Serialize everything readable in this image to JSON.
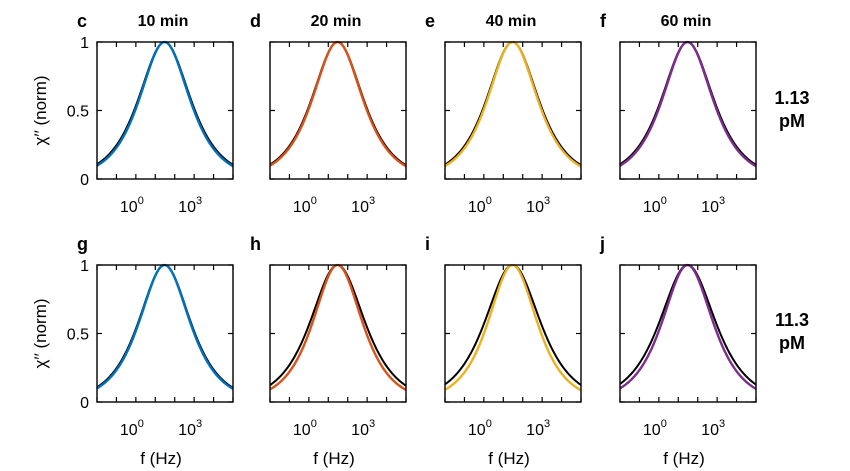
{
  "figure": {
    "column_titles": [
      "10 min",
      "20 min",
      "40 min",
      "60 min"
    ],
    "row_labels": [
      {
        "line1": "1.13",
        "line2": "pM"
      },
      {
        "line1": "11.3",
        "line2": "pM"
      }
    ],
    "ylabel": "χ′′ (norm)",
    "xlabel": "f (Hz)",
    "colors": {
      "blue": "#0072BD",
      "orange": "#D95319",
      "yellow": "#EDB120",
      "purple": "#7E2F8E",
      "reference": "#000000"
    }
  },
  "chart_data": [
    {
      "panel": "c",
      "title": "10 min",
      "row_label": "1.13 pM",
      "type": "line",
      "xscale": "log",
      "xlim": [
        0.01,
        100000
      ],
      "ylim": [
        0,
        1
      ],
      "xticks": [
        "10^0",
        "10^3"
      ],
      "yticks": [
        "0",
        "0.5",
        "1"
      ],
      "ylabel": "χ′′ (norm)",
      "xlabel": "",
      "series": [
        {
          "color": "#000000",
          "peak_hz": 30,
          "width": 1.19
        },
        {
          "color": "#0072BD",
          "peak_hz": 30,
          "width": 1.15
        }
      ]
    },
    {
      "panel": "d",
      "title": "20 min",
      "row_label": "1.13 pM",
      "type": "line",
      "xscale": "log",
      "xlim": [
        0.01,
        100000
      ],
      "ylim": [
        0,
        1
      ],
      "xticks": [
        "10^0",
        "10^3"
      ],
      "yticks": [],
      "ylabel": "",
      "xlabel": "",
      "series": [
        {
          "color": "#000000",
          "peak_hz": 30,
          "width": 1.18
        },
        {
          "color": "#D95319",
          "peak_hz": 30,
          "width": 1.15
        }
      ]
    },
    {
      "panel": "e",
      "title": "40 min",
      "row_label": "1.13 pM",
      "type": "line",
      "xscale": "log",
      "xlim": [
        0.01,
        100000
      ],
      "ylim": [
        0,
        1
      ],
      "xticks": [
        "10^0",
        "10^3"
      ],
      "yticks": [],
      "ylabel": "",
      "xlabel": "",
      "series": [
        {
          "color": "#000000",
          "peak_hz": 30,
          "width": 1.18
        },
        {
          "color": "#EDB120",
          "peak_hz": 30,
          "width": 1.14
        }
      ]
    },
    {
      "panel": "f",
      "title": "60 min",
      "row_label": "1.13 pM",
      "type": "line",
      "xscale": "log",
      "xlim": [
        0.01,
        100000
      ],
      "ylim": [
        0,
        1
      ],
      "xticks": [
        "10^0",
        "10^3"
      ],
      "yticks": [],
      "ylabel": "",
      "xlabel": "",
      "series": [
        {
          "color": "#000000",
          "peak_hz": 30,
          "width": 1.19
        },
        {
          "color": "#7E2F8E",
          "peak_hz": 30,
          "width": 1.15
        }
      ]
    },
    {
      "panel": "g",
      "title": "",
      "row_label": "11.3 pM",
      "type": "line",
      "xscale": "log",
      "xlim": [
        0.01,
        100000
      ],
      "ylim": [
        0,
        1
      ],
      "xticks": [
        "10^0",
        "10^3"
      ],
      "yticks": [
        "0",
        "0.5",
        "1"
      ],
      "ylabel": "χ′′ (norm)",
      "xlabel": "f (Hz)",
      "series": [
        {
          "color": "#000000",
          "peak_hz": 30,
          "width": 1.19
        },
        {
          "color": "#0072BD",
          "peak_hz": 30,
          "width": 1.16
        }
      ]
    },
    {
      "panel": "h",
      "title": "",
      "row_label": "11.3 pM",
      "type": "line",
      "xscale": "log",
      "xlim": [
        0.01,
        100000
      ],
      "ylim": [
        0,
        1
      ],
      "xticks": [
        "10^0",
        "10^3"
      ],
      "yticks": [],
      "ylabel": "",
      "xlabel": "f (Hz)",
      "series": [
        {
          "color": "#000000",
          "peak_hz": 30,
          "width": 1.25
        },
        {
          "color": "#D95319",
          "peak_hz": 30,
          "width": 1.13
        }
      ]
    },
    {
      "panel": "i",
      "title": "",
      "row_label": "11.3 pM",
      "type": "line",
      "xscale": "log",
      "xlim": [
        0.01,
        100000
      ],
      "ylim": [
        0,
        1
      ],
      "xticks": [
        "10^0",
        "10^3"
      ],
      "yticks": [],
      "ylabel": "",
      "xlabel": "f (Hz)",
      "series": [
        {
          "color": "#000000",
          "peak_hz": 30,
          "width": 1.27
        },
        {
          "color": "#EDB120",
          "peak_hz": 30,
          "width": 1.12
        }
      ]
    },
    {
      "panel": "j",
      "title": "",
      "row_label": "11.3 pM",
      "type": "line",
      "xscale": "log",
      "xlim": [
        0.01,
        100000
      ],
      "ylim": [
        0,
        1
      ],
      "xticks": [
        "10^0",
        "10^3"
      ],
      "yticks": [],
      "ylabel": "",
      "xlabel": "f (Hz)",
      "series": [
        {
          "color": "#000000",
          "peak_hz": 30,
          "width": 1.28
        },
        {
          "color": "#7E2F8E",
          "peak_hz": 30,
          "width": 1.16
        }
      ]
    }
  ]
}
